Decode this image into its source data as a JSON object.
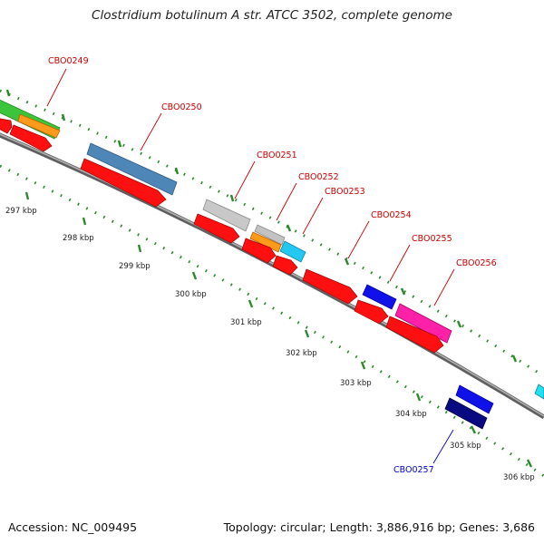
{
  "title": "Clostridium botulinum A str. ATCC 3502, complete genome",
  "accession": "Accession: NC_009495",
  "summary": "Topology: circular; Length: 3,886,916 bp; Genes: 3,686",
  "colors": {
    "forward_strand": "#ff0000",
    "reverse_strand_label": "#0000cc",
    "forward_label": "#cc0000",
    "tick_green": "#2a8a2a",
    "backbone": "#8a8a8a"
  },
  "kbp_labels": [
    "297 kbp",
    "298 kbp",
    "299 kbp",
    "300 kbp",
    "301 kbp",
    "302 kbp",
    "303 kbp",
    "304 kbp",
    "305 kbp",
    "306 kbp"
  ],
  "genes": [
    {
      "id": "CBO0249",
      "strand": "forward"
    },
    {
      "id": "CBO0250",
      "strand": "forward"
    },
    {
      "id": "CBO0251",
      "strand": "forward"
    },
    {
      "id": "CBO0252",
      "strand": "forward"
    },
    {
      "id": "CBO0253",
      "strand": "forward"
    },
    {
      "id": "CBO0254",
      "strand": "forward"
    },
    {
      "id": "CBO0255",
      "strand": "forward"
    },
    {
      "id": "CBO0256",
      "strand": "forward"
    },
    {
      "id": "CBO0257",
      "strand": "reverse"
    }
  ]
}
